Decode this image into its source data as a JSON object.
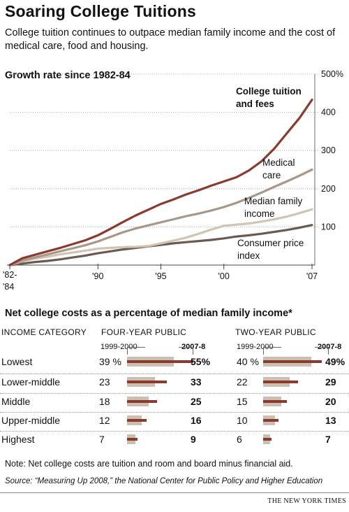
{
  "header": {
    "title": "Soaring College Tuitions",
    "subtitle": "College tuition continues to outpace median family income and the cost of medical care, food and housing."
  },
  "colors": {
    "tuition": "#8b3a2b",
    "medical": "#a89788",
    "income": "#d2c4b4",
    "cpi": "#6a5a4f",
    "bar_old": "#cbbfb4",
    "bar_new": "#8b3a2b"
  },
  "chart_data": [
    {
      "type": "line",
      "title": "Growth rate since 1982-84",
      "xlabel": "",
      "ylabel": "",
      "y_tick_labels": [
        "500%",
        "400",
        "300",
        "200",
        "100"
      ],
      "y_ticks": [
        500,
        400,
        300,
        200,
        100
      ],
      "ylim": [
        0,
        500
      ],
      "x_tick_labels": [
        "'82-",
        "'84",
        "'90",
        "'95",
        "'00",
        "'07"
      ],
      "xlim": [
        1983,
        2007
      ],
      "grid": true,
      "series": [
        {
          "name": "College tuition and fees",
          "color": "#8b3a2b",
          "x": [
            1983,
            1984,
            1985,
            1986,
            1987,
            1988,
            1989,
            1990,
            1991,
            1992,
            1993,
            1994,
            1995,
            1996,
            1997,
            1998,
            1999,
            2000,
            2001,
            2002,
            2003,
            2004,
            2005,
            2006,
            2007
          ],
          "y": [
            0,
            18,
            27,
            36,
            45,
            55,
            65,
            78,
            95,
            113,
            130,
            145,
            160,
            172,
            185,
            196,
            208,
            219,
            230,
            248,
            272,
            305,
            345,
            385,
            433
          ]
        },
        {
          "name": "Medical care",
          "color": "#a89788",
          "x": [
            1983,
            1984,
            1985,
            1986,
            1987,
            1988,
            1989,
            1990,
            1991,
            1992,
            1993,
            1994,
            1995,
            1996,
            1997,
            1998,
            1999,
            2000,
            2001,
            2002,
            2003,
            2004,
            2005,
            2006,
            2007
          ],
          "y": [
            0,
            12,
            20,
            28,
            36,
            44,
            52,
            62,
            74,
            86,
            96,
            104,
            112,
            120,
            128,
            135,
            143,
            152,
            163,
            176,
            190,
            205,
            219,
            234,
            250
          ]
        },
        {
          "name": "Median family income",
          "color": "#d2c4b4",
          "x": [
            1983,
            1984,
            1985,
            1986,
            1987,
            1988,
            1989,
            1990,
            1991,
            1992,
            1993,
            1994,
            1995,
            1996,
            1997,
            1998,
            1999,
            2000,
            2001,
            2002,
            2003,
            2004,
            2005,
            2006,
            2007
          ],
          "y": [
            0,
            10,
            17,
            22,
            28,
            33,
            38,
            43,
            45,
            47,
            48,
            50,
            57,
            64,
            72,
            82,
            93,
            103,
            106,
            109,
            114,
            120,
            127,
            136,
            146
          ]
        },
        {
          "name": "Consumer price index",
          "color": "#6a5a4f",
          "x": [
            1983,
            1984,
            1985,
            1986,
            1987,
            1988,
            1989,
            1990,
            1991,
            1992,
            1993,
            1994,
            1995,
            1996,
            1997,
            1998,
            1999,
            2000,
            2001,
            2002,
            2003,
            2004,
            2005,
            2006,
            2007
          ],
          "y": [
            0,
            4,
            8,
            11,
            15,
            20,
            25,
            31,
            36,
            41,
            45,
            49,
            53,
            57,
            60,
            63,
            66,
            70,
            75,
            78,
            82,
            87,
            92,
            98,
            105
          ]
        }
      ]
    },
    {
      "type": "bar",
      "title": "Net college costs as a percentage of median family income*",
      "column_headers": {
        "category": "INCOME CATEGORY",
        "four_year": "FOUR-YEAR PUBLIC",
        "two_year": "TWO-YEAR PUBLIC",
        "year_old": "1999-2000",
        "year_new": "2007-8"
      },
      "categories": [
        "Lowest",
        "Lower-middle",
        "Middle",
        "Upper-middle",
        "Highest"
      ],
      "series": [
        {
          "name": "Four-year public 1999-2000",
          "values": [
            39,
            23,
            18,
            12,
            7
          ],
          "labels": [
            "39 %",
            "23",
            "18",
            "12",
            "7"
          ]
        },
        {
          "name": "Four-year public 2007-8",
          "values": [
            55,
            33,
            25,
            16,
            9
          ],
          "labels": [
            "55%",
            "33",
            "25",
            "16",
            "9"
          ]
        },
        {
          "name": "Two-year public 1999-2000",
          "values": [
            40,
            22,
            15,
            10,
            6
          ],
          "labels": [
            "40 %",
            "22",
            "15",
            "10",
            "6"
          ]
        },
        {
          "name": "Two-year public 2007-8",
          "values": [
            49,
            29,
            20,
            13,
            7
          ],
          "labels": [
            "49%",
            "29",
            "20",
            "13",
            "7"
          ]
        }
      ]
    }
  ],
  "line_labels": {
    "tuition": [
      "College tuition",
      "and fees"
    ],
    "medical": [
      "Medical",
      "care"
    ],
    "income": [
      "Median family",
      "income"
    ],
    "cpi": [
      "Consumer price",
      "index"
    ]
  },
  "footer": {
    "note": "Note: Net college costs are tuition and room and board minus financial aid.",
    "source": "Source: “Measuring Up 2008,” the National Center for Public Policy and Higher Education",
    "credit": "THE NEW YORK TIMES"
  }
}
